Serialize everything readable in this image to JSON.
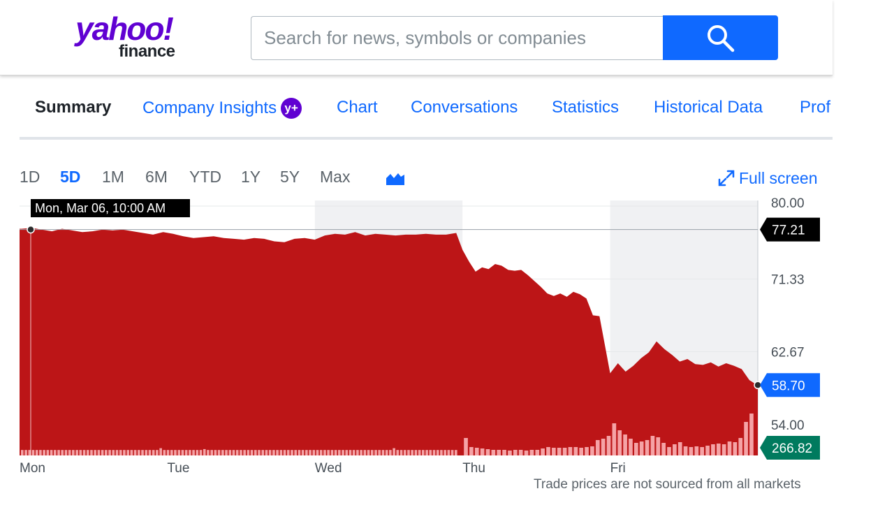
{
  "header": {
    "logo_yahoo": "yahoo!",
    "logo_finance": "finance",
    "search_placeholder": "Search for news, symbols or companies"
  },
  "tabs": [
    {
      "label": "Summary",
      "active": true
    },
    {
      "label": "Company Insights",
      "badge": "y+"
    },
    {
      "label": "Chart"
    },
    {
      "label": "Conversations"
    },
    {
      "label": "Statistics"
    },
    {
      "label": "Historical Data"
    },
    {
      "label": "Prof"
    }
  ],
  "ranges": [
    "1D",
    "5D",
    "1M",
    "6M",
    "YTD",
    "1Y",
    "5Y",
    "Max"
  ],
  "active_range": "5D",
  "fullscreen_label": "Full screen",
  "footnote": "Trade prices are not sourced from all markets",
  "colors": {
    "accent": "#0f69ff",
    "area_fill": "#bc1517",
    "volume": "#f5a3a6",
    "volume_badge": "#007a5e",
    "shade": "#f0f1f3",
    "brand": "#6001d2"
  },
  "chart_data": {
    "type": "area",
    "title": "",
    "xlabel": "",
    "ylabel": "",
    "days": [
      "Mon",
      "Tue",
      "Wed",
      "Thu",
      "Fri"
    ],
    "ylim": [
      50.33,
      80.0
    ],
    "yticks": [
      "80.00",
      "71.33",
      "62.67",
      "54.00"
    ],
    "price_series": [
      77.3,
      77.4,
      77.2,
      77.0,
      77.3,
      77.1,
      76.9,
      77.0,
      77.2,
      77.1,
      77.2,
      77.0,
      76.8,
      76.6,
      76.9,
      76.7,
      76.4,
      76.2,
      76.3,
      76.4,
      76.2,
      76.1,
      76.0,
      76.2,
      76.1,
      75.8,
      75.7,
      76.1,
      76.2,
      76.0,
      76.5,
      76.7,
      76.6,
      76.9,
      76.5,
      76.7,
      76.6,
      76.5,
      76.6,
      76.6,
      76.7,
      76.6,
      76.6,
      76.8,
      74.8,
      73.4,
      72.2,
      72.7,
      72.5,
      73.1,
      72.9,
      72.4,
      72.3,
      72.4,
      71.8,
      71.1,
      70.4,
      69.6,
      69.3,
      69.6,
      69.2,
      69.8,
      69.5,
      69.0,
      67.0,
      66.9,
      60.1,
      61.3,
      60.3,
      61.0,
      61.9,
      62.6,
      63.9,
      63.0,
      62.3,
      61.5,
      61.8,
      61.2,
      61.1,
      61.4,
      60.9,
      61.3,
      61.0,
      60.6,
      59.3,
      58.7
    ],
    "volume_series": [
      6,
      6,
      6,
      6,
      6,
      6,
      6,
      6,
      6,
      6,
      6,
      6,
      6,
      6,
      6,
      6,
      6,
      6,
      6,
      6,
      6,
      6,
      6,
      6,
      6,
      6,
      6,
      6,
      6,
      6,
      6,
      6,
      6,
      6,
      6,
      6,
      6,
      6,
      8,
      6,
      6,
      6,
      6,
      6,
      6,
      6,
      6,
      6,
      6,
      6,
      7,
      6,
      6,
      6,
      6,
      6,
      6,
      6,
      6,
      6,
      6,
      6,
      6,
      6,
      6,
      6,
      6,
      6,
      6,
      6,
      6,
      6,
      6,
      6,
      6,
      6,
      6,
      6,
      6,
      6,
      6,
      6,
      6,
      6,
      6,
      6,
      6,
      6,
      6,
      6,
      6,
      6,
      6,
      6,
      6,
      6,
      6,
      6,
      6,
      6,
      6,
      6,
      8,
      6,
      6,
      6,
      6,
      6,
      6,
      6,
      6,
      6,
      6,
      6,
      6,
      6,
      6,
      6,
      6,
      6,
      6,
      6,
      6,
      6,
      6,
      6,
      6,
      6,
      6,
      6,
      6,
      6,
      6,
      6,
      6,
      6,
      6,
      6,
      6,
      6,
      6,
      6,
      6,
      6,
      6,
      6,
      6,
      6,
      6,
      6,
      6,
      7,
      6,
      6,
      6,
      6,
      6,
      6,
      6,
      6,
      6,
      6,
      6,
      6,
      6,
      6,
      6,
      6,
      6,
      6,
      6,
      6,
      6,
      6,
      6,
      6,
      6,
      6,
      6,
      6,
      6,
      6,
      6,
      6,
      6,
      6,
      6,
      6,
      6,
      6,
      6,
      6,
      6,
      6,
      6,
      6,
      6,
      6,
      6,
      6,
      6,
      6,
      6,
      6,
      6,
      6,
      6,
      6,
      6,
      6,
      6,
      6,
      6,
      6,
      6,
      6,
      6,
      6,
      6,
      6,
      6,
      6,
      6,
      6,
      6,
      6,
      6,
      6,
      6,
      6,
      6,
      6,
      6,
      6,
      6,
      6,
      6,
      6,
      6,
      6,
      6,
      6,
      6,
      6,
      6,
      6,
      6,
      6,
      6,
      6,
      6,
      6,
      6,
      6,
      6,
      6,
      6,
      6,
      6,
      6,
      6,
      6,
      6,
      6,
      6,
      6,
      6,
      6,
      6,
      6,
      6,
      6,
      6,
      6,
      6,
      6,
      6,
      6,
      6,
      6,
      6,
      6,
      6,
      6,
      6,
      6,
      6,
      6,
      6,
      6,
      6,
      6,
      6,
      6,
      6,
      6,
      6,
      6,
      6,
      6
    ],
    "volume_thu_fri": [
      25,
      12,
      11,
      10,
      9,
      8,
      8,
      8,
      7,
      8,
      8,
      7,
      8,
      8,
      10,
      12,
      11,
      11,
      11,
      12,
      12,
      11,
      12,
      13,
      22,
      24,
      28,
      46,
      36,
      30,
      24,
      18,
      20,
      22,
      28,
      26,
      18,
      12,
      16,
      19,
      13,
      12,
      13,
      12,
      14,
      16,
      17,
      16,
      20,
      19,
      25,
      48,
      60
    ],
    "volume_legend": "266.82",
    "last_price": "58.70",
    "hover_price": "77.21",
    "hover_label": "Mon, Mar 06, 10:00 AM",
    "legend": "none",
    "grid": "horizontal"
  }
}
